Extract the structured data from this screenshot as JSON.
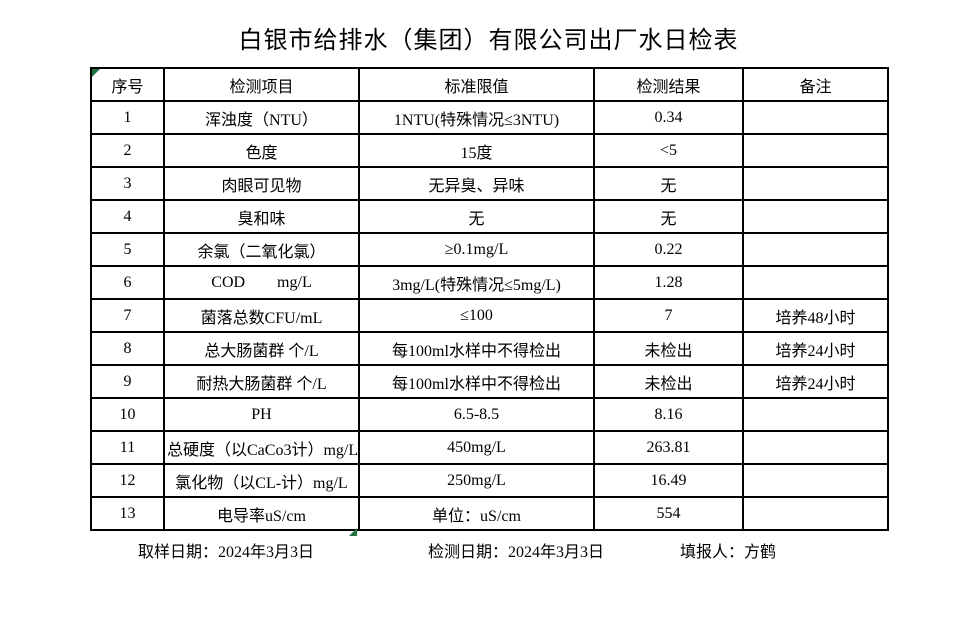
{
  "title": "白银市给排水（集团）有限公司出厂水日检表",
  "table": {
    "headers": [
      "序号",
      "检测项目",
      "标准限值",
      "检测结果",
      "备注"
    ],
    "rows": [
      {
        "no": "1",
        "item": "浑浊度（NTU）",
        "limit": "1NTU(特殊情况≤3NTU)",
        "result": "0.34",
        "note": ""
      },
      {
        "no": "2",
        "item": "色度",
        "limit": "15度",
        "result": "<5",
        "note": ""
      },
      {
        "no": "3",
        "item": "肉眼可见物",
        "limit": "无异臭、异味",
        "result": "无",
        "note": ""
      },
      {
        "no": "4",
        "item": "臭和味",
        "limit": "无",
        "result": "无",
        "note": ""
      },
      {
        "no": "5",
        "item": "余氯（二氧化氯）",
        "limit": "≥0.1mg/L",
        "result": "0.22",
        "note": ""
      },
      {
        "no": "6",
        "item": "COD        mg/L",
        "limit": "3mg/L(特殊情况≤5mg/L)",
        "result": "1.28",
        "note": ""
      },
      {
        "no": "7",
        "item": "菌落总数CFU/mL",
        "limit": "≤100",
        "result": "7",
        "note": "培养48小时"
      },
      {
        "no": "8",
        "item": "总大肠菌群 个/L",
        "limit": "每100ml水样中不得检出",
        "result": "未检出",
        "note": "培养24小时"
      },
      {
        "no": "9",
        "item": "耐热大肠菌群 个/L",
        "limit": "每100ml水样中不得检出",
        "result": "未检出",
        "note": "培养24小时"
      },
      {
        "no": "10",
        "item": "PH",
        "limit": "6.5-8.5",
        "result": "8.16",
        "note": ""
      },
      {
        "no": "11",
        "item": "总硬度（以CaCo3计）mg/L",
        "limit": "450mg/L",
        "result": "263.81",
        "note": ""
      },
      {
        "no": "12",
        "item": "氯化物（以CL-计）mg/L",
        "limit": "250mg/L",
        "result": "16.49",
        "note": ""
      },
      {
        "no": "13",
        "item": "电导率uS/cm",
        "limit": "单位：uS/cm",
        "result": "554",
        "note": ""
      }
    ]
  },
  "footer": {
    "sample_date": "取样日期：2024年3月3日",
    "test_date": "检测日期：2024年3月3日",
    "reporter": "填报人：方鹤"
  },
  "colors": {
    "border": "#000000",
    "text": "#000000",
    "background": "#ffffff",
    "error_indicator_green": "#217346"
  }
}
